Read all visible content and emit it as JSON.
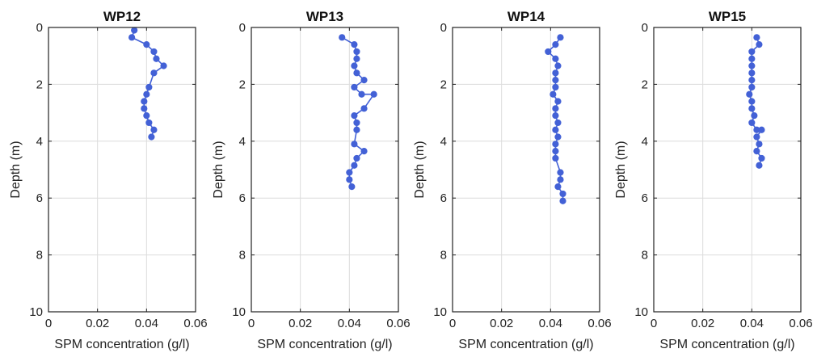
{
  "chart_data": [
    {
      "type": "line",
      "title": "WP12",
      "xlabel": "SPM concentration (g/l)",
      "ylabel": "Depth (m)",
      "xlim": [
        0,
        0.06
      ],
      "ylim": [
        0,
        10
      ],
      "y_reversed": true,
      "xticks": [
        "0",
        "0.02",
        "0.04",
        "0.06"
      ],
      "yticks": [
        "0",
        "2",
        "4",
        "6",
        "8",
        "10"
      ],
      "grid": true,
      "marker_color": "#4361d6",
      "series": [
        {
          "x": [
            0.035,
            0.034,
            0.04,
            0.043,
            0.044,
            0.047,
            0.043,
            0.041,
            0.04,
            0.039,
            0.039,
            0.04,
            0.041,
            0.043,
            0.042
          ],
          "y": [
            0.1,
            0.35,
            0.6,
            0.85,
            1.1,
            1.35,
            1.6,
            2.1,
            2.35,
            2.6,
            2.85,
            3.1,
            3.35,
            3.6,
            3.85
          ]
        }
      ]
    },
    {
      "type": "line",
      "title": "WP13",
      "xlabel": "SPM concentration (g/l)",
      "ylabel": "Depth (m)",
      "xlim": [
        0,
        0.06
      ],
      "ylim": [
        0,
        10
      ],
      "y_reversed": true,
      "xticks": [
        "0",
        "0.02",
        "0.04",
        "0.06"
      ],
      "yticks": [
        "0",
        "2",
        "4",
        "6",
        "8",
        "10"
      ],
      "grid": true,
      "marker_color": "#4361d6",
      "series": [
        {
          "x": [
            0.037,
            0.042,
            0.043,
            0.043,
            0.042,
            0.043,
            0.046,
            0.042,
            0.045,
            0.05,
            0.046,
            0.042,
            0.043,
            0.043,
            0.042,
            0.046,
            0.043,
            0.042,
            0.04,
            0.04,
            0.041
          ],
          "y": [
            0.35,
            0.6,
            0.85,
            1.1,
            1.35,
            1.6,
            1.85,
            2.1,
            2.35,
            2.35,
            2.85,
            3.1,
            3.35,
            3.6,
            4.1,
            4.35,
            4.6,
            4.85,
            5.1,
            5.35,
            5.6
          ]
        }
      ]
    },
    {
      "type": "line",
      "title": "WP14",
      "xlabel": "SPM concentration (g/l)",
      "ylabel": "Depth (m)",
      "xlim": [
        0,
        0.06
      ],
      "ylim": [
        0,
        10
      ],
      "y_reversed": true,
      "xticks": [
        "0",
        "0.02",
        "0.04",
        "0.06"
      ],
      "yticks": [
        "0",
        "2",
        "4",
        "6",
        "8",
        "10"
      ],
      "grid": true,
      "marker_color": "#4361d6",
      "series": [
        {
          "x": [
            0.044,
            0.042,
            0.039,
            0.042,
            0.043,
            0.042,
            0.042,
            0.042,
            0.041,
            0.043,
            0.042,
            0.042,
            0.043,
            0.042,
            0.043,
            0.042,
            0.042,
            0.042,
            0.044,
            0.044,
            0.043,
            0.045,
            0.045
          ],
          "y": [
            0.35,
            0.6,
            0.85,
            1.1,
            1.35,
            1.6,
            1.85,
            2.1,
            2.35,
            2.6,
            2.85,
            3.1,
            3.35,
            3.6,
            3.85,
            4.1,
            4.35,
            4.6,
            5.1,
            5.35,
            5.6,
            5.85,
            6.1
          ]
        }
      ]
    },
    {
      "type": "line",
      "title": "WP15",
      "xlabel": "SPM concentration (g/l)",
      "ylabel": "Depth (m)",
      "xlim": [
        0,
        0.06
      ],
      "ylim": [
        0,
        10
      ],
      "y_reversed": true,
      "xticks": [
        "0",
        "0.02",
        "0.04",
        "0.06"
      ],
      "yticks": [
        "0",
        "2",
        "4",
        "6",
        "8",
        "10"
      ],
      "grid": true,
      "marker_color": "#4361d6",
      "series": [
        {
          "x": [
            0.042,
            0.043,
            0.04,
            0.04,
            0.04,
            0.04,
            0.04,
            0.04,
            0.039,
            0.04,
            0.04,
            0.041,
            0.04,
            0.042,
            0.044,
            0.042,
            0.043,
            0.042,
            0.044,
            0.043
          ],
          "y": [
            0.35,
            0.6,
            0.85,
            1.1,
            1.35,
            1.6,
            1.85,
            2.1,
            2.35,
            2.6,
            2.85,
            3.1,
            3.35,
            3.6,
            3.6,
            3.85,
            4.1,
            4.35,
            4.6,
            4.85
          ]
        }
      ]
    }
  ]
}
